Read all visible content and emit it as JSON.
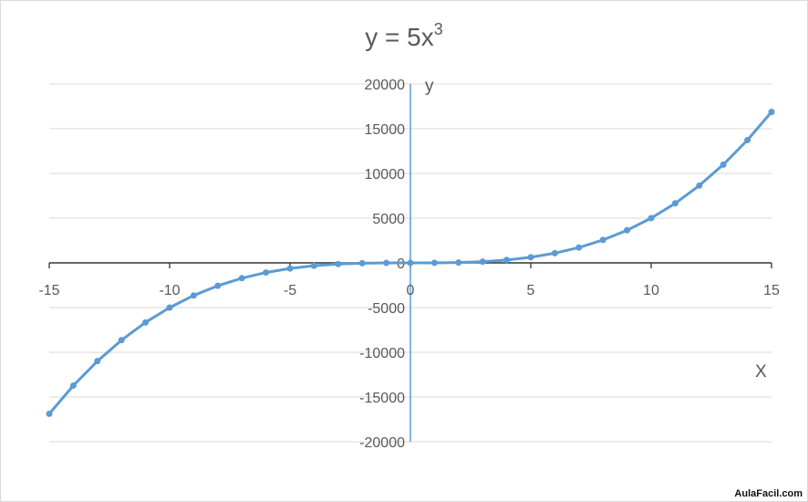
{
  "chart_data": {
    "type": "line",
    "title": {
      "base": "y = 5x",
      "exponent": "3"
    },
    "xlabel": "X",
    "ylabel": "y",
    "xlim": [
      -15,
      15
    ],
    "ylim": [
      -20000,
      20000
    ],
    "x_ticks": [
      -15,
      -10,
      -5,
      0,
      5,
      10,
      15
    ],
    "y_ticks": [
      20000,
      15000,
      10000,
      5000,
      0,
      -5000,
      -10000,
      -15000,
      -20000
    ],
    "grid": "horizontal",
    "legend": "none",
    "colors": {
      "series": "#5b9bd5",
      "grid": "#d9d9d9",
      "axis": "#5b9bd5",
      "text": "#595959"
    },
    "series": [
      {
        "x": [
          -15,
          -14,
          -13,
          -12,
          -11,
          -10,
          -9,
          -8,
          -7,
          -6,
          -5,
          -4,
          -3,
          -2,
          -1,
          0,
          1,
          2,
          3,
          4,
          5,
          6,
          7,
          8,
          9,
          10,
          11,
          12,
          13,
          14,
          15
        ],
        "values": [
          -16875,
          -13720,
          -10985,
          -8640,
          -6655,
          -5000,
          -3645,
          -2560,
          -1715,
          -1080,
          -625,
          -320,
          -135,
          -40,
          -5,
          0,
          5,
          40,
          135,
          320,
          625,
          1080,
          1715,
          2560,
          3645,
          5000,
          6655,
          8640,
          10985,
          13720,
          16875
        ]
      }
    ]
  },
  "watermark": "AulaFacil.com"
}
